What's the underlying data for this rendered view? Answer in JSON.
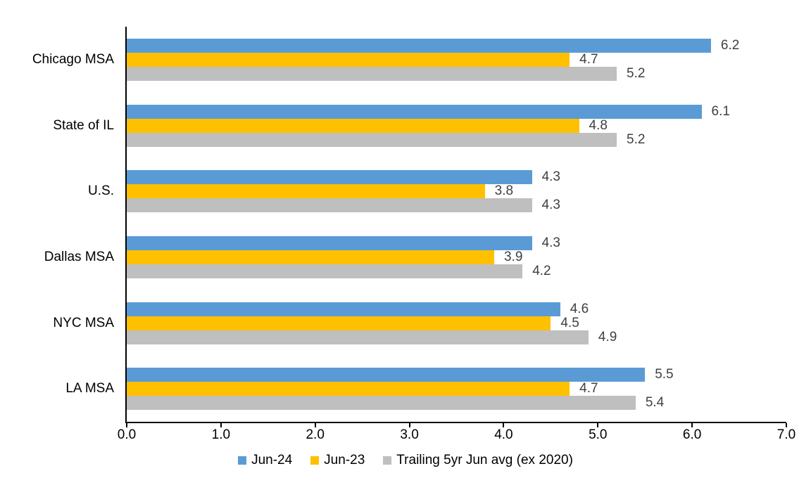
{
  "chart_data": {
    "type": "bar",
    "orientation": "horizontal",
    "title": "",
    "xlabel": "",
    "ylabel": "",
    "categories": [
      "Chicago MSA",
      "State of IL",
      "U.S.",
      "Dallas MSA",
      "NYC MSA",
      "LA MSA"
    ],
    "series": [
      {
        "name": "Jun-24",
        "color": "#5B9BD5",
        "values": [
          6.2,
          6.1,
          4.3,
          4.3,
          4.6,
          5.5
        ]
      },
      {
        "name": "Jun-23",
        "color": "#FFC000",
        "values": [
          4.7,
          4.8,
          3.8,
          3.9,
          4.5,
          4.7
        ]
      },
      {
        "name": "Trailing 5yr Jun avg (ex 2020)",
        "color": "#BFBFBF",
        "values": [
          5.2,
          5.2,
          4.3,
          4.2,
          4.9,
          5.4
        ]
      }
    ],
    "xlim": [
      0,
      7
    ],
    "x_ticks": [
      "0.0",
      "1.0",
      "2.0",
      "3.0",
      "4.0",
      "5.0",
      "6.0",
      "7.0"
    ],
    "grid": false,
    "legend_position": "bottom",
    "value_label_decimals": 1,
    "colors": {
      "axis": "#000000",
      "value_label": "#404040",
      "text": "#000000",
      "background": "#FFFFFF"
    }
  }
}
